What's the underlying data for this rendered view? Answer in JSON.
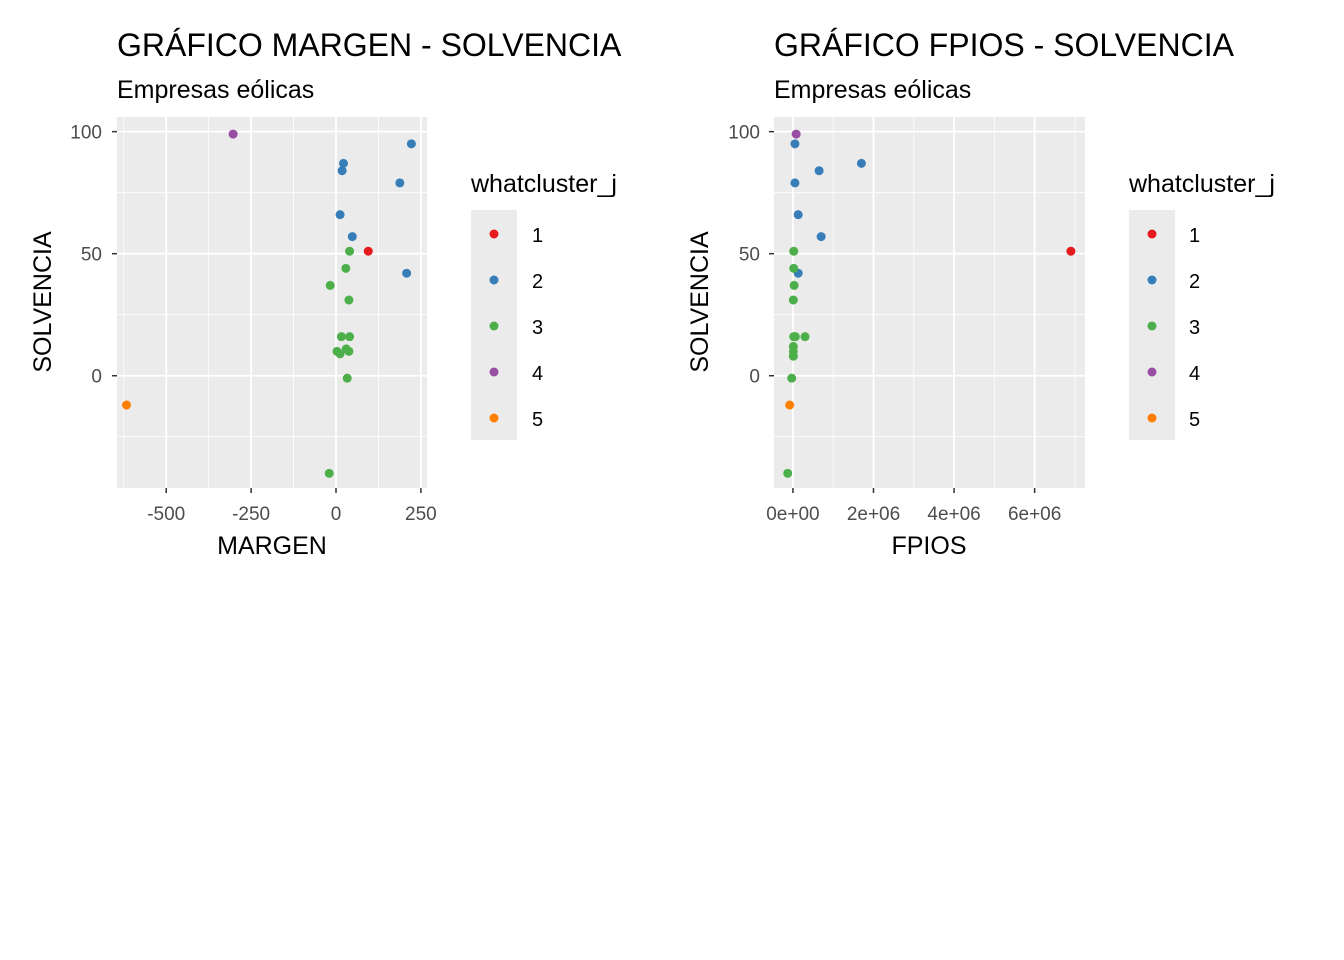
{
  "chart_data": [
    {
      "type": "scatter",
      "title": "GRÁFICO MARGEN - SOLVENCIA",
      "subtitle": "Empresas eólicas",
      "xlabel": "MARGEN",
      "ylabel": "SOLVENCIA",
      "xlim": [
        -645,
        268
      ],
      "ylim": [
        -46,
        106
      ],
      "x_ticks": [
        -500,
        -250,
        0,
        250
      ],
      "x_tick_labels": [
        "-500",
        "-250",
        "0",
        "250"
      ],
      "y_ticks": [
        0,
        50,
        100
      ],
      "y_tick_labels": [
        "0",
        "50",
        "100"
      ],
      "grid": true,
      "legend": {
        "title": "whatcluster_j",
        "position": "right"
      },
      "series": [
        {
          "name": "1",
          "color": "#e41a1c",
          "points": [
            [
              95,
              51
            ]
          ]
        },
        {
          "name": "2",
          "color": "#377eb8",
          "points": [
            [
              222,
              95
            ],
            [
              22,
              87
            ],
            [
              18,
              84
            ],
            [
              188,
              79
            ],
            [
              12,
              66
            ],
            [
              48,
              57
            ],
            [
              208,
              42
            ]
          ]
        },
        {
          "name": "3",
          "color": "#4daf4a",
          "points": [
            [
              40,
              51
            ],
            [
              29,
              44
            ],
            [
              -17,
              37
            ],
            [
              38,
              31
            ],
            [
              16,
              16
            ],
            [
              40,
              16
            ],
            [
              30,
              11
            ],
            [
              3,
              10
            ],
            [
              38,
              10
            ],
            [
              12,
              9
            ],
            [
              33,
              -1
            ],
            [
              -20,
              -40
            ]
          ]
        },
        {
          "name": "4",
          "color": "#984ea3",
          "points": [
            [
              -303,
              99
            ]
          ]
        },
        {
          "name": "5",
          "color": "#ff7f00",
          "points": [
            [
              -617,
              -12
            ]
          ]
        }
      ]
    },
    {
      "type": "scatter",
      "title": "GRÁFICO FPIOS - SOLVENCIA",
      "subtitle": "Empresas eólicas",
      "xlabel": "FPIOS",
      "ylabel": "SOLVENCIA",
      "xlim": [
        -470000,
        7250000
      ],
      "ylim": [
        -46,
        106
      ],
      "x_ticks": [
        0,
        2000000,
        4000000,
        6000000
      ],
      "x_tick_labels": [
        "0e+00",
        "2e+06",
        "4e+06",
        "6e+06"
      ],
      "y_ticks": [
        0,
        50,
        100
      ],
      "y_tick_labels": [
        "0",
        "50",
        "100"
      ],
      "grid": true,
      "legend": {
        "title": "whatcluster_j",
        "position": "right"
      },
      "series": [
        {
          "name": "1",
          "color": "#e41a1c",
          "points": [
            [
              6900000,
              51
            ]
          ]
        },
        {
          "name": "2",
          "color": "#377eb8",
          "points": [
            [
              50000,
              95
            ],
            [
              1700000,
              87
            ],
            [
              650000,
              84
            ],
            [
              50000,
              79
            ],
            [
              130000,
              66
            ],
            [
              700000,
              57
            ],
            [
              130000,
              42
            ]
          ]
        },
        {
          "name": "3",
          "color": "#4daf4a",
          "points": [
            [
              20000,
              51
            ],
            [
              20000,
              44
            ],
            [
              30000,
              37
            ],
            [
              10000,
              31
            ],
            [
              20000,
              16
            ],
            [
              60000,
              16
            ],
            [
              300000,
              16
            ],
            [
              10000,
              12
            ],
            [
              10000,
              10
            ],
            [
              10000,
              8
            ],
            [
              -30000,
              -1
            ],
            [
              -130000,
              -40
            ]
          ]
        },
        {
          "name": "4",
          "color": "#984ea3",
          "points": [
            [
              80000,
              99
            ]
          ]
        },
        {
          "name": "5",
          "color": "#ff7f00",
          "points": [
            [
              -80000,
              -12
            ]
          ]
        }
      ]
    }
  ]
}
